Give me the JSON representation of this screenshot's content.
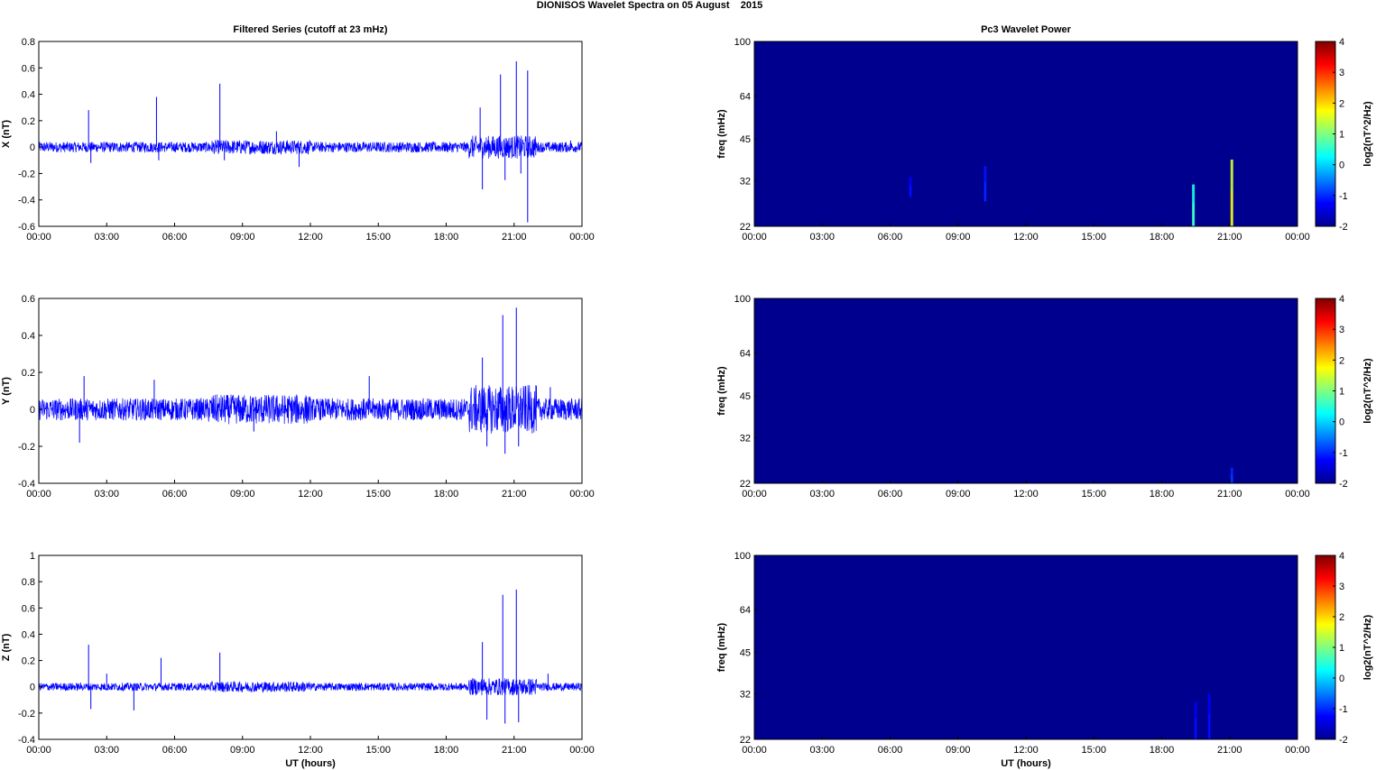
{
  "figure_title": "DIONISOS Wavelet Spectra on 05 August    2015",
  "left_title": "Filtered Series (cutoff at 23 mHz)",
  "right_title": "Pc3 Wavelet Power",
  "time_ticks": [
    "00:00",
    "03:00",
    "06:00",
    "09:00",
    "12:00",
    "15:00",
    "18:00",
    "21:00",
    "00:00"
  ],
  "colors": {
    "trace": "#0000ff",
    "spectrum_bg": "#00008f"
  },
  "chart_data": [
    {
      "type": "line",
      "title": "Filtered Series (cutoff at 23 mHz)",
      "ylabel": "X (nT)",
      "xlabel": "",
      "ylim": [
        -0.6,
        0.8
      ],
      "yticks": [
        "-0.6",
        "-0.4",
        "-0.2",
        "0",
        "0.2",
        "0.4",
        "0.6",
        "0.8"
      ],
      "xlim_hours": [
        0,
        24
      ],
      "noise_amplitude_nT": 0.04,
      "series": [
        {
          "values_hours": [
            [
              0,
              0.01
            ],
            [
              2.2,
              0.28
            ],
            [
              2.3,
              -0.12
            ],
            [
              5.2,
              0.38
            ],
            [
              5.3,
              -0.1
            ],
            [
              8.0,
              0.48
            ],
            [
              8.2,
              -0.1
            ],
            [
              10.5,
              0.12
            ],
            [
              11.5,
              -0.15
            ],
            [
              19.5,
              0.3
            ],
            [
              19.6,
              -0.32
            ],
            [
              20.4,
              0.55
            ],
            [
              20.6,
              -0.25
            ],
            [
              21.1,
              0.65
            ],
            [
              21.3,
              -0.2
            ],
            [
              21.6,
              -0.57
            ],
            [
              21.6,
              0.58
            ],
            [
              23.5,
              0.05
            ]
          ]
        }
      ]
    },
    {
      "type": "line",
      "ylabel": "Y (nT)",
      "xlabel": "",
      "ylim": [
        -0.4,
        0.6
      ],
      "yticks": [
        "-0.4",
        "-0.2",
        "0",
        "0.2",
        "0.4",
        "0.6"
      ],
      "xlim_hours": [
        0,
        24
      ],
      "noise_amplitude_nT": 0.06,
      "series": [
        {
          "values_hours": [
            [
              1.8,
              -0.18
            ],
            [
              2.0,
              0.18
            ],
            [
              5.1,
              0.16
            ],
            [
              9.5,
              -0.12
            ],
            [
              14.6,
              0.18
            ],
            [
              19.6,
              0.28
            ],
            [
              19.8,
              -0.2
            ],
            [
              20.5,
              0.51
            ],
            [
              20.6,
              -0.24
            ],
            [
              21.1,
              0.55
            ],
            [
              21.2,
              -0.2
            ],
            [
              22.6,
              0.12
            ]
          ]
        }
      ]
    },
    {
      "type": "line",
      "ylabel": "Z (nT)",
      "xlabel": "UT (hours)",
      "ylim": [
        -0.4,
        1.0
      ],
      "yticks": [
        "-0.4",
        "-0.2",
        "0",
        "0.2",
        "0.4",
        "0.6",
        "0.8",
        "1"
      ],
      "xlim_hours": [
        0,
        24
      ],
      "noise_amplitude_nT": 0.03,
      "series": [
        {
          "values_hours": [
            [
              2.2,
              0.32
            ],
            [
              2.3,
              -0.17
            ],
            [
              3.0,
              0.1
            ],
            [
              4.2,
              -0.18
            ],
            [
              5.4,
              0.22
            ],
            [
              8.0,
              0.26
            ],
            [
              19.6,
              0.34
            ],
            [
              19.8,
              -0.25
            ],
            [
              20.5,
              0.7
            ],
            [
              20.6,
              -0.28
            ],
            [
              21.1,
              0.74
            ],
            [
              21.2,
              -0.27
            ],
            [
              22.5,
              0.1
            ]
          ]
        }
      ]
    },
    {
      "type": "heatmap",
      "title": "Pc3 Wavelet Power",
      "ylabel": "freq (mHz)",
      "xlabel": "",
      "yticks": [
        "22",
        "32",
        "45",
        "64",
        "100"
      ],
      "xlim_hours": [
        0,
        24
      ],
      "colorbar_label": "log2(nT^2/Hz)",
      "colorbar_range": [
        -2,
        4
      ],
      "colorbar_ticks": [
        "-2",
        "-1",
        "0",
        "1",
        "2",
        "3",
        "4"
      ],
      "background_value": -2,
      "features": [
        {
          "hour": 19.4,
          "f_low": 22,
          "f_high": 31,
          "value": 0
        },
        {
          "hour": 21.1,
          "f_low": 22,
          "f_high": 38,
          "value": 1.2
        },
        {
          "hour": 10.2,
          "f_low": 27,
          "f_high": 36,
          "value": -1.7
        },
        {
          "hour": 6.9,
          "f_low": 28,
          "f_high": 33,
          "value": -1.85
        }
      ]
    },
    {
      "type": "heatmap",
      "ylabel": "freq (mHz)",
      "xlabel": "",
      "yticks": [
        "22",
        "32",
        "45",
        "64",
        "100"
      ],
      "xlim_hours": [
        0,
        24
      ],
      "colorbar_label": "log2(nT^2/Hz)",
      "colorbar_range": [
        -2,
        4
      ],
      "colorbar_ticks": [
        "-2",
        "-1",
        "0",
        "1",
        "2",
        "3",
        "4"
      ],
      "background_value": -2,
      "features": [
        {
          "hour": 21.1,
          "f_low": 22,
          "f_high": 25,
          "value": -1.6
        }
      ]
    },
    {
      "type": "heatmap",
      "ylabel": "freq (mHz)",
      "xlabel": "UT (hours)",
      "yticks": [
        "22",
        "32",
        "45",
        "64",
        "100"
      ],
      "xlim_hours": [
        0,
        24
      ],
      "colorbar_label": "log2(nT^2/Hz)",
      "colorbar_range": [
        -2,
        4
      ],
      "colorbar_ticks": [
        "-2",
        "-1",
        "0",
        "1",
        "2",
        "3",
        "4"
      ],
      "background_value": -2,
      "features": [
        {
          "hour": 19.5,
          "f_low": 22,
          "f_high": 30,
          "value": -1.85
        },
        {
          "hour": 20.1,
          "f_low": 22,
          "f_high": 32,
          "value": -1.85
        }
      ]
    }
  ]
}
